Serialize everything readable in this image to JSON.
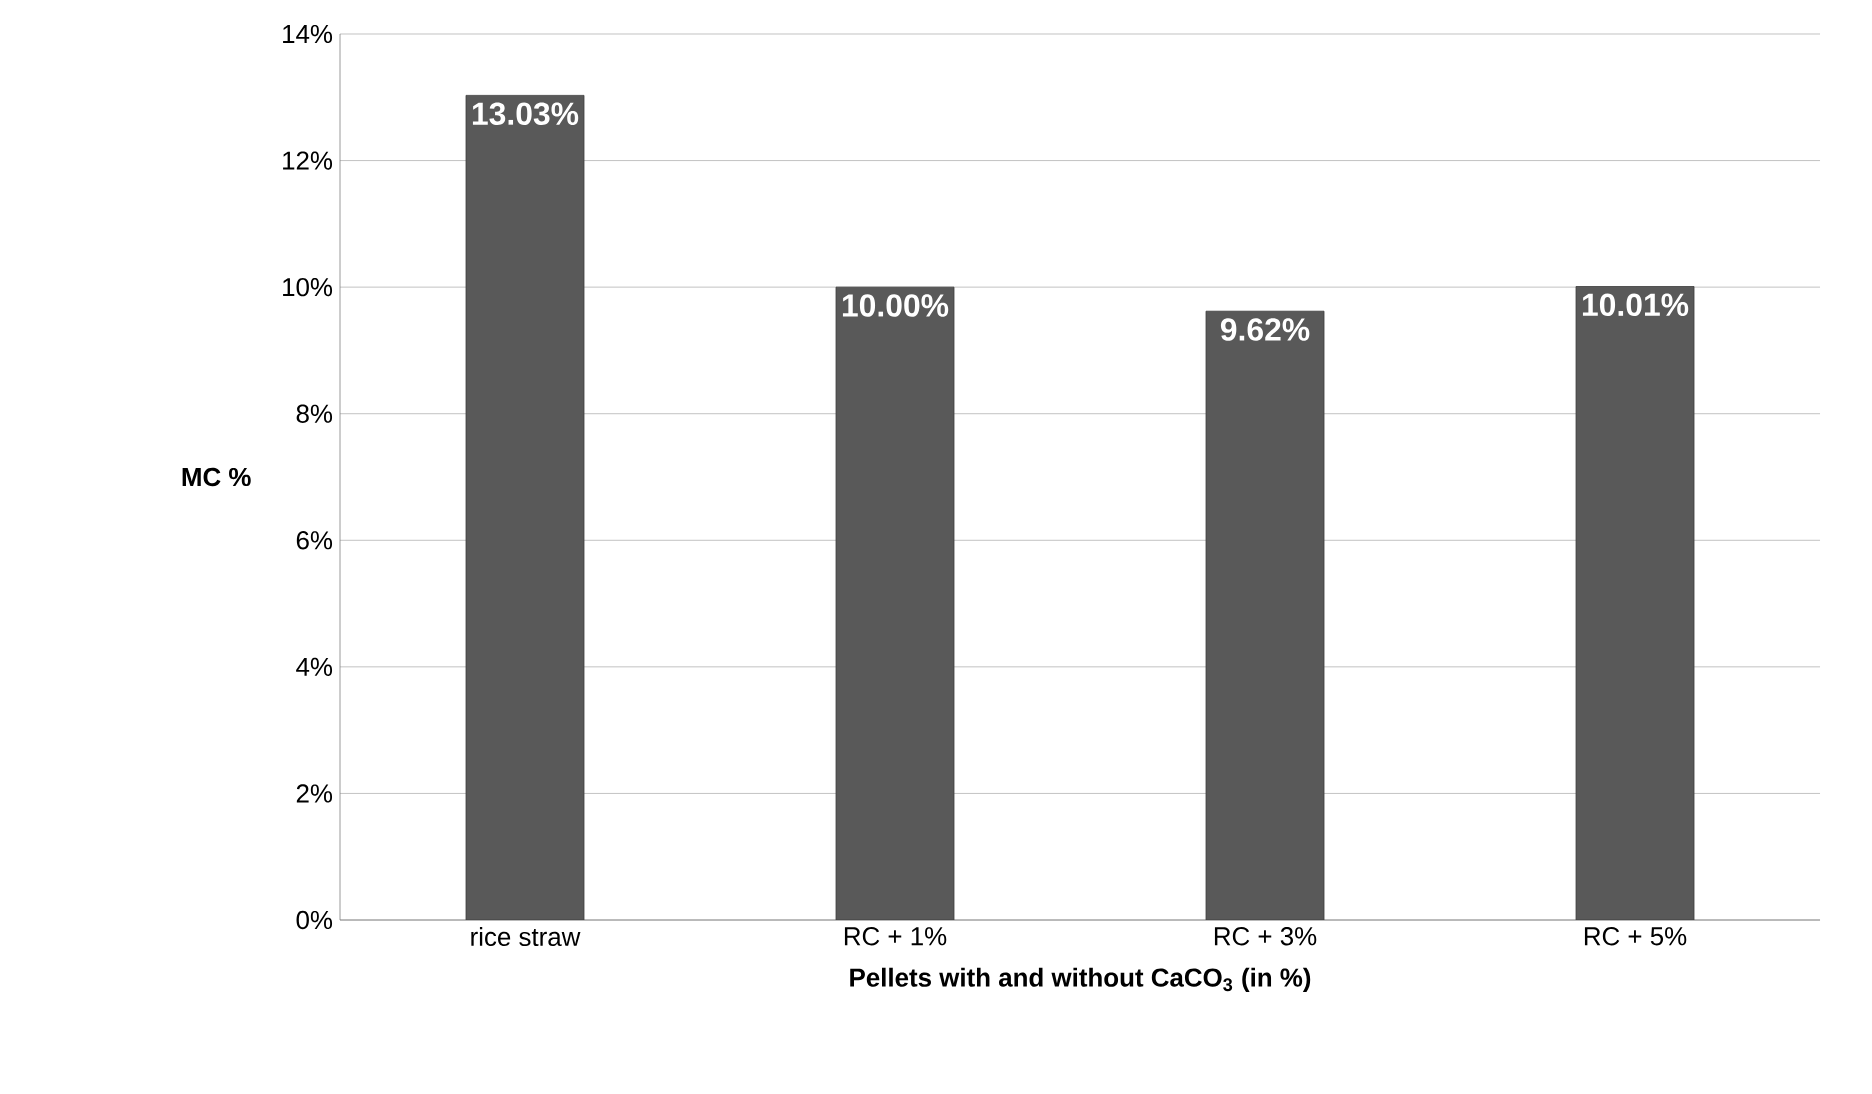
{
  "chart_data": {
    "type": "bar",
    "categories": [
      "rice straw",
      "RC + 1%",
      "RC + 3%",
      "RC + 5%"
    ],
    "values": [
      13.03,
      10.0,
      9.62,
      10.01
    ],
    "value_labels": [
      "13.03%",
      "10.00%",
      "9.62%",
      "10.01%"
    ],
    "color": "#595959",
    "xlabel": "Pellets with and without CaCO$_{3}$ (in %)",
    "ylabel": "MC %",
    "ylim": [
      0,
      14
    ],
    "yticks": [
      {
        "value": 0,
        "label": "0%"
      },
      {
        "value": 2,
        "label": "2%"
      },
      {
        "value": 4,
        "label": "4%"
      },
      {
        "value": 6,
        "label": "6%"
      },
      {
        "value": 8,
        "label": "8%"
      },
      {
        "value": 10,
        "label": "10%"
      },
      {
        "value": 12,
        "label": "12%"
      },
      {
        "value": 14,
        "label": "14%"
      }
    ],
    "grid": "y"
  }
}
